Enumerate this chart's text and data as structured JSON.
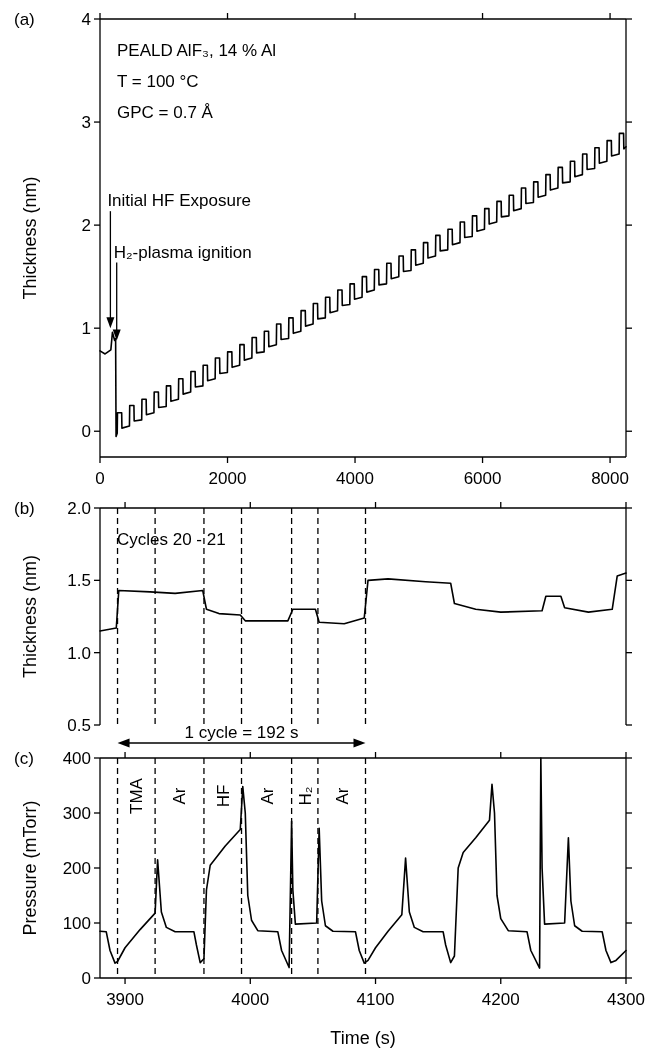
{
  "chart_data": [
    {
      "type": "line",
      "title": "(a)",
      "ylabel": "Thickness (nm)",
      "color": "#000000",
      "xlim": [
        0,
        8250
      ],
      "xticks": [
        0,
        2000,
        4000,
        6000,
        8000
      ],
      "ylim": [
        -0.25,
        4
      ],
      "yticks": [
        0,
        1,
        2,
        3,
        4
      ],
      "x": [
        0,
        80,
        170,
        195,
        230,
        245,
        252,
        270,
        274,
        340,
        344,
        462,
        466,
        532,
        536,
        654,
        658,
        724,
        728,
        846,
        850,
        916,
        920,
        1038,
        1042,
        1108,
        1112,
        1230,
        1234,
        1300,
        1304,
        1422,
        1426,
        1492,
        1496,
        1614,
        1618,
        1684,
        1688,
        1806,
        1810,
        1876,
        1880,
        1998,
        2002,
        2068,
        2072,
        2190,
        2194,
        2260,
        2264,
        2382,
        2386,
        2452,
        2456,
        2574,
        2578,
        2644,
        2648,
        2766,
        2770,
        2836,
        2840,
        2958,
        2962,
        3028,
        3032,
        3150,
        3154,
        3220,
        3224,
        3342,
        3346,
        3412,
        3416,
        3534,
        3538,
        3604,
        3608,
        3726,
        3730,
        3796,
        3800,
        3918,
        3922,
        3988,
        3992,
        4110,
        4114,
        4180,
        4184,
        4302,
        4306,
        4372,
        4376,
        4494,
        4498,
        4564,
        4568,
        4686,
        4690,
        4756,
        4760,
        4878,
        4882,
        4948,
        4952,
        5070,
        5074,
        5140,
        5144,
        5262,
        5266,
        5332,
        5336,
        5454,
        5458,
        5524,
        5528,
        5646,
        5650,
        5716,
        5720,
        5838,
        5842,
        5908,
        5912,
        6030,
        6034,
        6100,
        6104,
        6222,
        6226,
        6292,
        6296,
        6414,
        6418,
        6484,
        6488,
        6606,
        6610,
        6676,
        6680,
        6798,
        6802,
        6868,
        6872,
        6990,
        6994,
        7060,
        7064,
        7182,
        7186,
        7252,
        7256,
        7374,
        7378,
        7444,
        7448,
        7566,
        7570,
        7636,
        7640,
        7758,
        7762,
        7828,
        7832,
        7950,
        7954,
        8020,
        8024,
        8142,
        8146,
        8212,
        8216,
        8250
      ],
      "values": [
        0.78,
        0.75,
        0.79,
        0.96,
        0.88,
        0.9,
        -0.05,
        -0.02,
        0.18,
        0.18,
        0.03,
        0.05,
        0.25,
        0.25,
        0.1,
        0.11,
        0.31,
        0.31,
        0.16,
        0.18,
        0.38,
        0.38,
        0.23,
        0.24,
        0.44,
        0.44,
        0.29,
        0.31,
        0.51,
        0.51,
        0.36,
        0.38,
        0.58,
        0.58,
        0.43,
        0.44,
        0.64,
        0.64,
        0.49,
        0.51,
        0.71,
        0.71,
        0.56,
        0.57,
        0.77,
        0.77,
        0.62,
        0.64,
        0.84,
        0.84,
        0.69,
        0.71,
        0.91,
        0.91,
        0.76,
        0.77,
        0.97,
        0.97,
        0.82,
        0.84,
        1.04,
        1.04,
        0.89,
        0.9,
        1.1,
        1.1,
        0.95,
        0.97,
        1.17,
        1.17,
        1.02,
        1.04,
        1.24,
        1.24,
        1.09,
        1.1,
        1.3,
        1.3,
        1.15,
        1.17,
        1.37,
        1.37,
        1.22,
        1.23,
        1.43,
        1.43,
        1.28,
        1.3,
        1.5,
        1.5,
        1.35,
        1.37,
        1.57,
        1.57,
        1.42,
        1.43,
        1.63,
        1.63,
        1.48,
        1.5,
        1.7,
        1.7,
        1.55,
        1.56,
        1.76,
        1.76,
        1.61,
        1.63,
        1.83,
        1.83,
        1.68,
        1.7,
        1.9,
        1.9,
        1.75,
        1.76,
        1.96,
        1.96,
        1.81,
        1.83,
        2.03,
        2.03,
        1.88,
        1.89,
        2.09,
        2.09,
        1.94,
        1.96,
        2.16,
        2.16,
        2.01,
        2.03,
        2.23,
        2.23,
        2.08,
        2.09,
        2.29,
        2.29,
        2.14,
        2.16,
        2.36,
        2.36,
        2.21,
        2.22,
        2.42,
        2.42,
        2.27,
        2.29,
        2.49,
        2.49,
        2.34,
        2.36,
        2.56,
        2.56,
        2.41,
        2.42,
        2.62,
        2.62,
        2.47,
        2.49,
        2.69,
        2.69,
        2.54,
        2.55,
        2.75,
        2.75,
        2.6,
        2.62,
        2.82,
        2.82,
        2.67,
        2.69,
        2.89,
        2.89,
        2.74,
        2.76
      ],
      "annotations": [
        "PEALD AlF₃, 14 % Al",
        "T = 100 °C",
        "GPC = 0.7 Å",
        {
          "text": "Initial HF Exposure",
          "x": 163,
          "y": 1.0
        },
        {
          "text": "H₂-plasma ignition",
          "x": 262,
          "y": 0.88
        }
      ]
    },
    {
      "type": "line",
      "title": "(b)",
      "ylabel": "Thickness (nm)",
      "color": "#000000",
      "tick_labels": "y",
      "xlim": [
        3880,
        4300
      ],
      "xticks": [
        3900,
        4000,
        4100,
        4200,
        4300
      ],
      "ylim": [
        0.5,
        2.0
      ],
      "yticks": [
        {
          "value": 0.5,
          "label": "0.5"
        },
        {
          "value": 1,
          "label": "1.0"
        },
        {
          "value": 1.5,
          "label": "1.5"
        },
        {
          "value": 2,
          "label": "2.0"
        }
      ],
      "x": [
        3880,
        3893,
        3895,
        3920,
        3940,
        3962,
        3965,
        3975,
        3992,
        3996,
        4030,
        4034,
        4052,
        4055,
        4075,
        4091,
        4094,
        4110,
        4140,
        4160,
        4163,
        4180,
        4200,
        4233,
        4236,
        4248,
        4251,
        4270,
        4289,
        4293,
        4300
      ],
      "values": [
        1.15,
        1.17,
        1.43,
        1.42,
        1.41,
        1.43,
        1.3,
        1.27,
        1.26,
        1.22,
        1.22,
        1.3,
        1.3,
        1.21,
        1.2,
        1.24,
        1.5,
        1.51,
        1.49,
        1.48,
        1.34,
        1.3,
        1.28,
        1.29,
        1.39,
        1.39,
        1.31,
        1.28,
        1.3,
        1.53,
        1.55
      ],
      "annotations": [
        "Cycles 20 - 21"
      ],
      "ref_lines": [
        {
          "axis": "x",
          "value": 3894,
          "line_style": "dashed"
        },
        {
          "axis": "x",
          "value": 3924,
          "line_style": "dashed"
        },
        {
          "axis": "x",
          "value": 3963,
          "line_style": "dashed"
        },
        {
          "axis": "x",
          "value": 3993,
          "line_style": "dashed"
        },
        {
          "axis": "x",
          "value": 4033,
          "line_style": "dashed"
        },
        {
          "axis": "x",
          "value": 4054,
          "line_style": "dashed"
        },
        {
          "axis": "x",
          "value": 4092,
          "line_style": "dashed"
        }
      ]
    },
    {
      "type": "line",
      "title": "(c)",
      "xlabel": "Time (s)",
      "ylabel": "Pressure (mTorr)",
      "color": "#000000",
      "xlim": [
        3880,
        4300
      ],
      "xticks": [
        3900,
        4000,
        4100,
        4200,
        4300
      ],
      "ylim": [
        0,
        400
      ],
      "yticks": [
        0,
        100,
        200,
        300,
        400
      ],
      "x": [
        3880,
        3885,
        3888,
        3892,
        3894,
        3900,
        3912,
        3924,
        3926,
        3929,
        3933,
        3940,
        3955,
        3957,
        3960,
        3963,
        3965,
        3968,
        3980,
        3992,
        3994,
        3996,
        3998,
        4001,
        4006,
        4022,
        4025,
        4031,
        4033,
        4034,
        4036,
        4053,
        4055,
        4057,
        4060,
        4066,
        4084,
        4087,
        4091,
        4094,
        4100,
        4110,
        4121,
        4124,
        4127,
        4131,
        4138,
        4154,
        4156,
        4160,
        4163,
        4166,
        4170,
        4180,
        4191,
        4193,
        4195,
        4197,
        4200,
        4206,
        4221,
        4224,
        4231,
        4232,
        4233,
        4235,
        4251,
        4254,
        4256,
        4259,
        4265,
        4281,
        4284,
        4288,
        4292,
        4300
      ],
      "values": [
        85,
        84,
        50,
        27,
        30,
        55,
        88,
        118,
        215,
        120,
        92,
        84,
        84,
        60,
        28,
        35,
        160,
        205,
        240,
        270,
        348,
        300,
        150,
        105,
        86,
        84,
        50,
        19,
        285,
        160,
        98,
        100,
        272,
        140,
        95,
        85,
        84,
        50,
        27,
        32,
        55,
        85,
        115,
        218,
        120,
        92,
        84,
        84,
        60,
        28,
        40,
        200,
        228,
        255,
        287,
        352,
        300,
        150,
        108,
        86,
        84,
        50,
        18,
        400,
        200,
        98,
        100,
        255,
        140,
        95,
        85,
        84,
        50,
        28,
        32,
        50
      ],
      "annotations": [
        "1 cycle = 192 s",
        "TMA",
        "Ar",
        "HF",
        "Ar",
        "H₂",
        "Ar"
      ],
      "ref_lines": [
        {
          "axis": "x",
          "value": 3894,
          "line_style": "dashed"
        },
        {
          "axis": "x",
          "value": 3924,
          "line_style": "dashed"
        },
        {
          "axis": "x",
          "value": 3963,
          "line_style": "dashed"
        },
        {
          "axis": "x",
          "value": 3993,
          "line_style": "dashed"
        },
        {
          "axis": "x",
          "value": 4033,
          "line_style": "dashed"
        },
        {
          "axis": "x",
          "value": 4054,
          "line_style": "dashed"
        },
        {
          "axis": "x",
          "value": 4092,
          "line_style": "dashed"
        }
      ]
    }
  ]
}
